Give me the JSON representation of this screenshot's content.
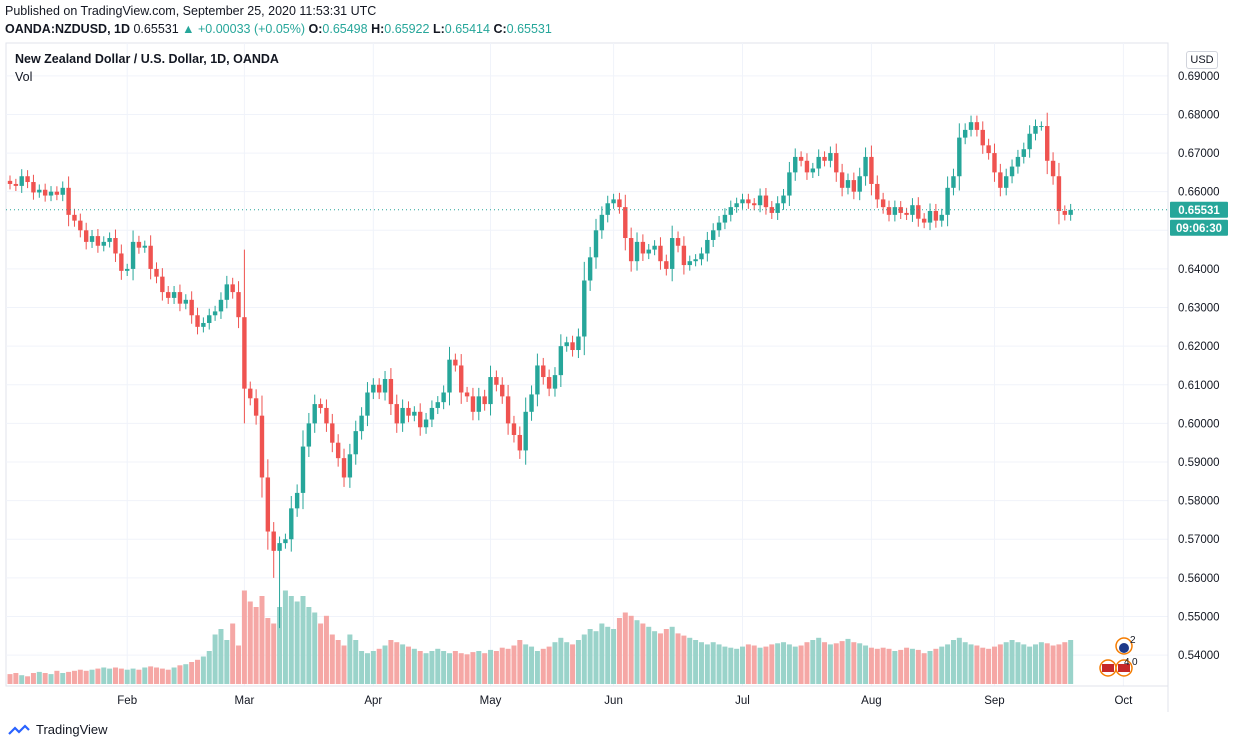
{
  "header": {
    "published": "Published on TradingView.com, September 25, 2020 11:53:31 UTC",
    "symbol": "OANDA:NZDUSD, 1D",
    "last": "0.65531",
    "change": "▲ +0.00033 (+0.05%)",
    "o_label": "O:",
    "o_value": "0.65498",
    "h_label": "H:",
    "h_value": "0.65922",
    "l_label": "L:",
    "l_value": "0.65414",
    "c_label": "C:",
    "c_value": "0.65531"
  },
  "chart_title": "New Zealand Dollar / U.S. Dollar, 1D, OANDA",
  "vol_label": "Vol",
  "currency_button": "USD",
  "price_badge": "0.65531",
  "countdown_badge": "09:06:30",
  "footer_brand": "TradingView",
  "events": {
    "e1": "2",
    "e2": "4",
    "e3": "0"
  },
  "colors": {
    "up": "#26a69a",
    "down": "#ef5350",
    "up_vol": "#9ad3ca",
    "down_vol": "#f5a7a5",
    "grid": "#f0f3fa"
  },
  "chart_data": {
    "type": "candlestick",
    "title": "New Zealand Dollar / U.S. Dollar, 1D, OANDA",
    "ylabel": "USD",
    "ylim": [
      0.532,
      0.6985
    ],
    "price_ticks": [
      "0.54000",
      "0.55000",
      "0.56000",
      "0.57000",
      "0.58000",
      "0.59000",
      "0.60000",
      "0.61000",
      "0.62000",
      "0.63000",
      "0.64000",
      "0.65000",
      "0.66000",
      "0.67000",
      "0.68000",
      "0.69000"
    ],
    "x_ticks": [
      {
        "label": "Feb",
        "index": 20
      },
      {
        "label": "Mar",
        "index": 40
      },
      {
        "label": "Apr",
        "index": 62
      },
      {
        "label": "May",
        "index": 82
      },
      {
        "label": "Jun",
        "index": 103
      },
      {
        "label": "Jul",
        "index": 125
      },
      {
        "label": "Aug",
        "index": 147
      },
      {
        "label": "Sep",
        "index": 168
      },
      {
        "label": "Oct",
        "index": 190
      }
    ],
    "last_price": 0.65531,
    "close": [
      0.662,
      0.6615,
      0.664,
      0.6625,
      0.6598,
      0.6605,
      0.659,
      0.66,
      0.6592,
      0.661,
      0.654,
      0.6525,
      0.65,
      0.647,
      0.6485,
      0.646,
      0.647,
      0.648,
      0.644,
      0.6395,
      0.64,
      0.647,
      0.6455,
      0.646,
      0.64,
      0.638,
      0.634,
      0.6325,
      0.634,
      0.631,
      0.632,
      0.628,
      0.625,
      0.626,
      0.628,
      0.629,
      0.632,
      0.636,
      0.634,
      0.6275,
      0.609,
      0.6065,
      0.602,
      0.586,
      0.572,
      0.567,
      0.569,
      0.57,
      0.578,
      0.582,
      0.594,
      0.6,
      0.605,
      0.604,
      0.6,
      0.595,
      0.591,
      0.586,
      0.592,
      0.598,
      0.602,
      0.608,
      0.61,
      0.608,
      0.6115,
      0.605,
      0.6,
      0.604,
      0.602,
      0.603,
      0.599,
      0.601,
      0.604,
      0.6055,
      0.608,
      0.6165,
      0.615,
      0.608,
      0.607,
      0.603,
      0.607,
      0.605,
      0.612,
      0.61,
      0.607,
      0.6,
      0.597,
      0.593,
      0.603,
      0.6075,
      0.615,
      0.612,
      0.609,
      0.6125,
      0.62,
      0.621,
      0.619,
      0.6225,
      0.637,
      0.643,
      0.65,
      0.654,
      0.657,
      0.658,
      0.656,
      0.648,
      0.642,
      0.647,
      0.644,
      0.645,
      0.646,
      0.642,
      0.64,
      0.648,
      0.646,
      0.641,
      0.642,
      0.6425,
      0.644,
      0.6475,
      0.65,
      0.652,
      0.654,
      0.656,
      0.657,
      0.658,
      0.657,
      0.6565,
      0.659,
      0.656,
      0.6545,
      0.657,
      0.659,
      0.665,
      0.669,
      0.668,
      0.665,
      0.666,
      0.669,
      0.668,
      0.67,
      0.665,
      0.661,
      0.663,
      0.66,
      0.664,
      0.669,
      0.662,
      0.658,
      0.656,
      0.654,
      0.656,
      0.6545,
      0.654,
      0.6565,
      0.653,
      0.652,
      0.655,
      0.6525,
      0.654,
      0.661,
      0.664,
      0.674,
      0.676,
      0.678,
      0.676,
      0.672,
      0.67,
      0.665,
      0.661,
      0.664,
      0.6665,
      0.669,
      0.671,
      0.675,
      0.677,
      0.677,
      0.668,
      0.664,
      0.655,
      0.654,
      0.6553
    ],
    "volume_relative": [
      0.09,
      0.1,
      0.08,
      0.07,
      0.1,
      0.11,
      0.1,
      0.09,
      0.12,
      0.1,
      0.11,
      0.12,
      0.13,
      0.12,
      0.13,
      0.14,
      0.15,
      0.14,
      0.15,
      0.14,
      0.13,
      0.14,
      0.13,
      0.15,
      0.16,
      0.15,
      0.14,
      0.13,
      0.15,
      0.17,
      0.18,
      0.2,
      0.22,
      0.25,
      0.3,
      0.45,
      0.5,
      0.4,
      0.55,
      0.35,
      0.85,
      0.75,
      0.7,
      0.8,
      0.6,
      0.55,
      0.7,
      0.85,
      0.8,
      0.75,
      0.8,
      0.7,
      0.65,
      0.55,
      0.62,
      0.45,
      0.4,
      0.35,
      0.45,
      0.4,
      0.3,
      0.28,
      0.3,
      0.32,
      0.35,
      0.4,
      0.38,
      0.36,
      0.34,
      0.32,
      0.3,
      0.28,
      0.3,
      0.32,
      0.3,
      0.28,
      0.3,
      0.28,
      0.27,
      0.29,
      0.3,
      0.28,
      0.31,
      0.3,
      0.33,
      0.32,
      0.35,
      0.4,
      0.36,
      0.34,
      0.3,
      0.32,
      0.34,
      0.38,
      0.42,
      0.38,
      0.36,
      0.4,
      0.45,
      0.5,
      0.48,
      0.55,
      0.52,
      0.5,
      0.6,
      0.65,
      0.62,
      0.58,
      0.55,
      0.52,
      0.48,
      0.46,
      0.5,
      0.52,
      0.46,
      0.44,
      0.42,
      0.4,
      0.38,
      0.36,
      0.38,
      0.36,
      0.34,
      0.33,
      0.32,
      0.34,
      0.36,
      0.35,
      0.33,
      0.34,
      0.36,
      0.37,
      0.38,
      0.36,
      0.34,
      0.35,
      0.38,
      0.4,
      0.42,
      0.38,
      0.36,
      0.37,
      0.39,
      0.41,
      0.38,
      0.37,
      0.35,
      0.33,
      0.32,
      0.33,
      0.32,
      0.3,
      0.31,
      0.33,
      0.32,
      0.31,
      0.28,
      0.3,
      0.32,
      0.34,
      0.36,
      0.4,
      0.42,
      0.38,
      0.36,
      0.35,
      0.33,
      0.32,
      0.34,
      0.36,
      0.38,
      0.4,
      0.38,
      0.36,
      0.34,
      0.36,
      0.38,
      0.37,
      0.35,
      0.36,
      0.38,
      0.4
    ]
  }
}
